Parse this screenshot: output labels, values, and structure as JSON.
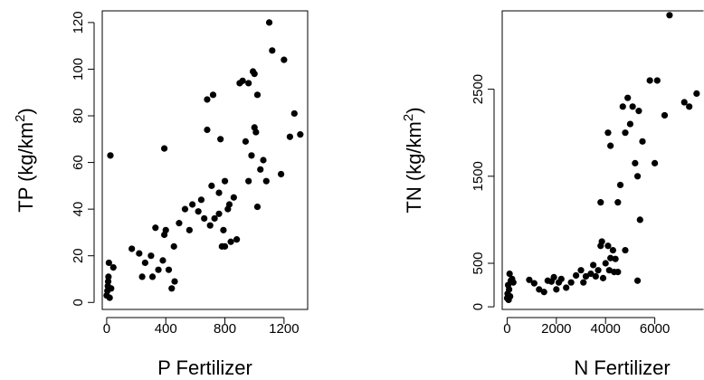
{
  "chart_data": [
    {
      "type": "scatter",
      "xlabel": "P Fertilizer",
      "ylabel": "TP (kg/km",
      "ylabel_sup": "2",
      "ylabel_close": ")",
      "xlim": [
        -30,
        1360
      ],
      "ylim": [
        -3,
        125
      ],
      "xticks": [
        0,
        400,
        800,
        1200
      ],
      "yticks": [
        0,
        20,
        40,
        60,
        80,
        100,
        120
      ],
      "xtick_labels": [
        "0",
        "400",
        "800",
        "1200"
      ],
      "ytick_labels": [
        "0",
        "20",
        "40",
        "60",
        "80",
        "100",
        "120"
      ],
      "grid": false,
      "x": [
        0,
        5,
        8,
        10,
        12,
        15,
        20,
        25,
        30,
        45,
        170,
        220,
        240,
        260,
        300,
        310,
        330,
        350,
        380,
        390,
        400,
        420,
        440,
        455,
        460,
        490,
        530,
        560,
        580,
        620,
        640,
        660,
        680,
        700,
        710,
        730,
        760,
        770,
        780,
        790,
        800,
        820,
        840,
        860,
        880,
        900,
        920,
        940,
        960,
        980,
        1000,
        1020,
        1040,
        1060,
        1100,
        1120,
        1180,
        1200,
        1240,
        1270,
        1310,
        390,
        680,
        720,
        760,
        800,
        830,
        960,
        990,
        1000,
        1010,
        1020,
        1080
      ],
      "y": [
        3,
        5,
        7,
        9,
        11,
        17,
        2,
        63,
        6,
        15,
        23,
        21,
        11,
        17,
        20,
        11,
        32,
        14,
        18,
        29,
        31,
        14,
        6,
        24,
        9,
        34,
        40,
        31,
        42,
        39,
        44,
        36,
        74,
        33,
        50,
        36,
        47,
        70,
        24,
        31,
        52,
        40,
        26,
        45,
        27,
        94,
        95,
        69,
        52,
        63,
        98,
        41,
        57,
        61,
        120,
        108,
        55,
        104,
        71,
        81,
        72,
        66,
        87,
        89,
        38,
        24,
        42,
        94,
        99,
        75,
        73,
        89,
        52
      ]
    },
    {
      "type": "scatter",
      "xlabel": "N Fertilizer",
      "ylabel": "TN (kg/km",
      "ylabel_sup": "2",
      "ylabel_close": ")",
      "xlim": [
        -200,
        8000
      ],
      "ylim": [
        -30,
        3400
      ],
      "xticks": [
        0,
        2000,
        4000,
        6000
      ],
      "yticks": [
        0,
        500,
        1500,
        2500
      ],
      "xtick_labels": [
        "0",
        "2000",
        "4000",
        "6000"
      ],
      "ytick_labels": [
        "0",
        "500",
        "1500",
        "2500"
      ],
      "grid": false,
      "x": [
        0,
        20,
        40,
        60,
        80,
        100,
        120,
        150,
        200,
        250,
        900,
        1100,
        1300,
        1500,
        1650,
        1800,
        1900,
        2000,
        2100,
        2200,
        2400,
        2600,
        2800,
        3000,
        3100,
        3200,
        3400,
        3500,
        3600,
        3700,
        3800,
        3850,
        3900,
        4000,
        4100,
        4150,
        4200,
        4300,
        4350,
        4400,
        4500,
        4600,
        4700,
        4800,
        4900,
        5000,
        5100,
        5200,
        5300,
        5350,
        5400,
        5500,
        5800,
        6000,
        6100,
        6400,
        6600,
        7200,
        7400,
        7700,
        3800,
        4100,
        4200,
        5300,
        4500,
        4800
      ],
      "y": [
        100,
        150,
        250,
        80,
        200,
        380,
        120,
        300,
        320,
        280,
        310,
        270,
        200,
        170,
        300,
        290,
        340,
        200,
        280,
        320,
        220,
        280,
        360,
        420,
        280,
        350,
        380,
        480,
        350,
        420,
        700,
        750,
        330,
        500,
        700,
        420,
        560,
        650,
        400,
        550,
        400,
        1400,
        2300,
        2000,
        2400,
        2100,
        2300,
        1650,
        1500,
        2250,
        1000,
        1900,
        2600,
        1650,
        2600,
        2200,
        3350,
        2350,
        2300,
        2450,
        1200,
        2000,
        1850,
        300,
        1200,
        650
      ]
    }
  ]
}
